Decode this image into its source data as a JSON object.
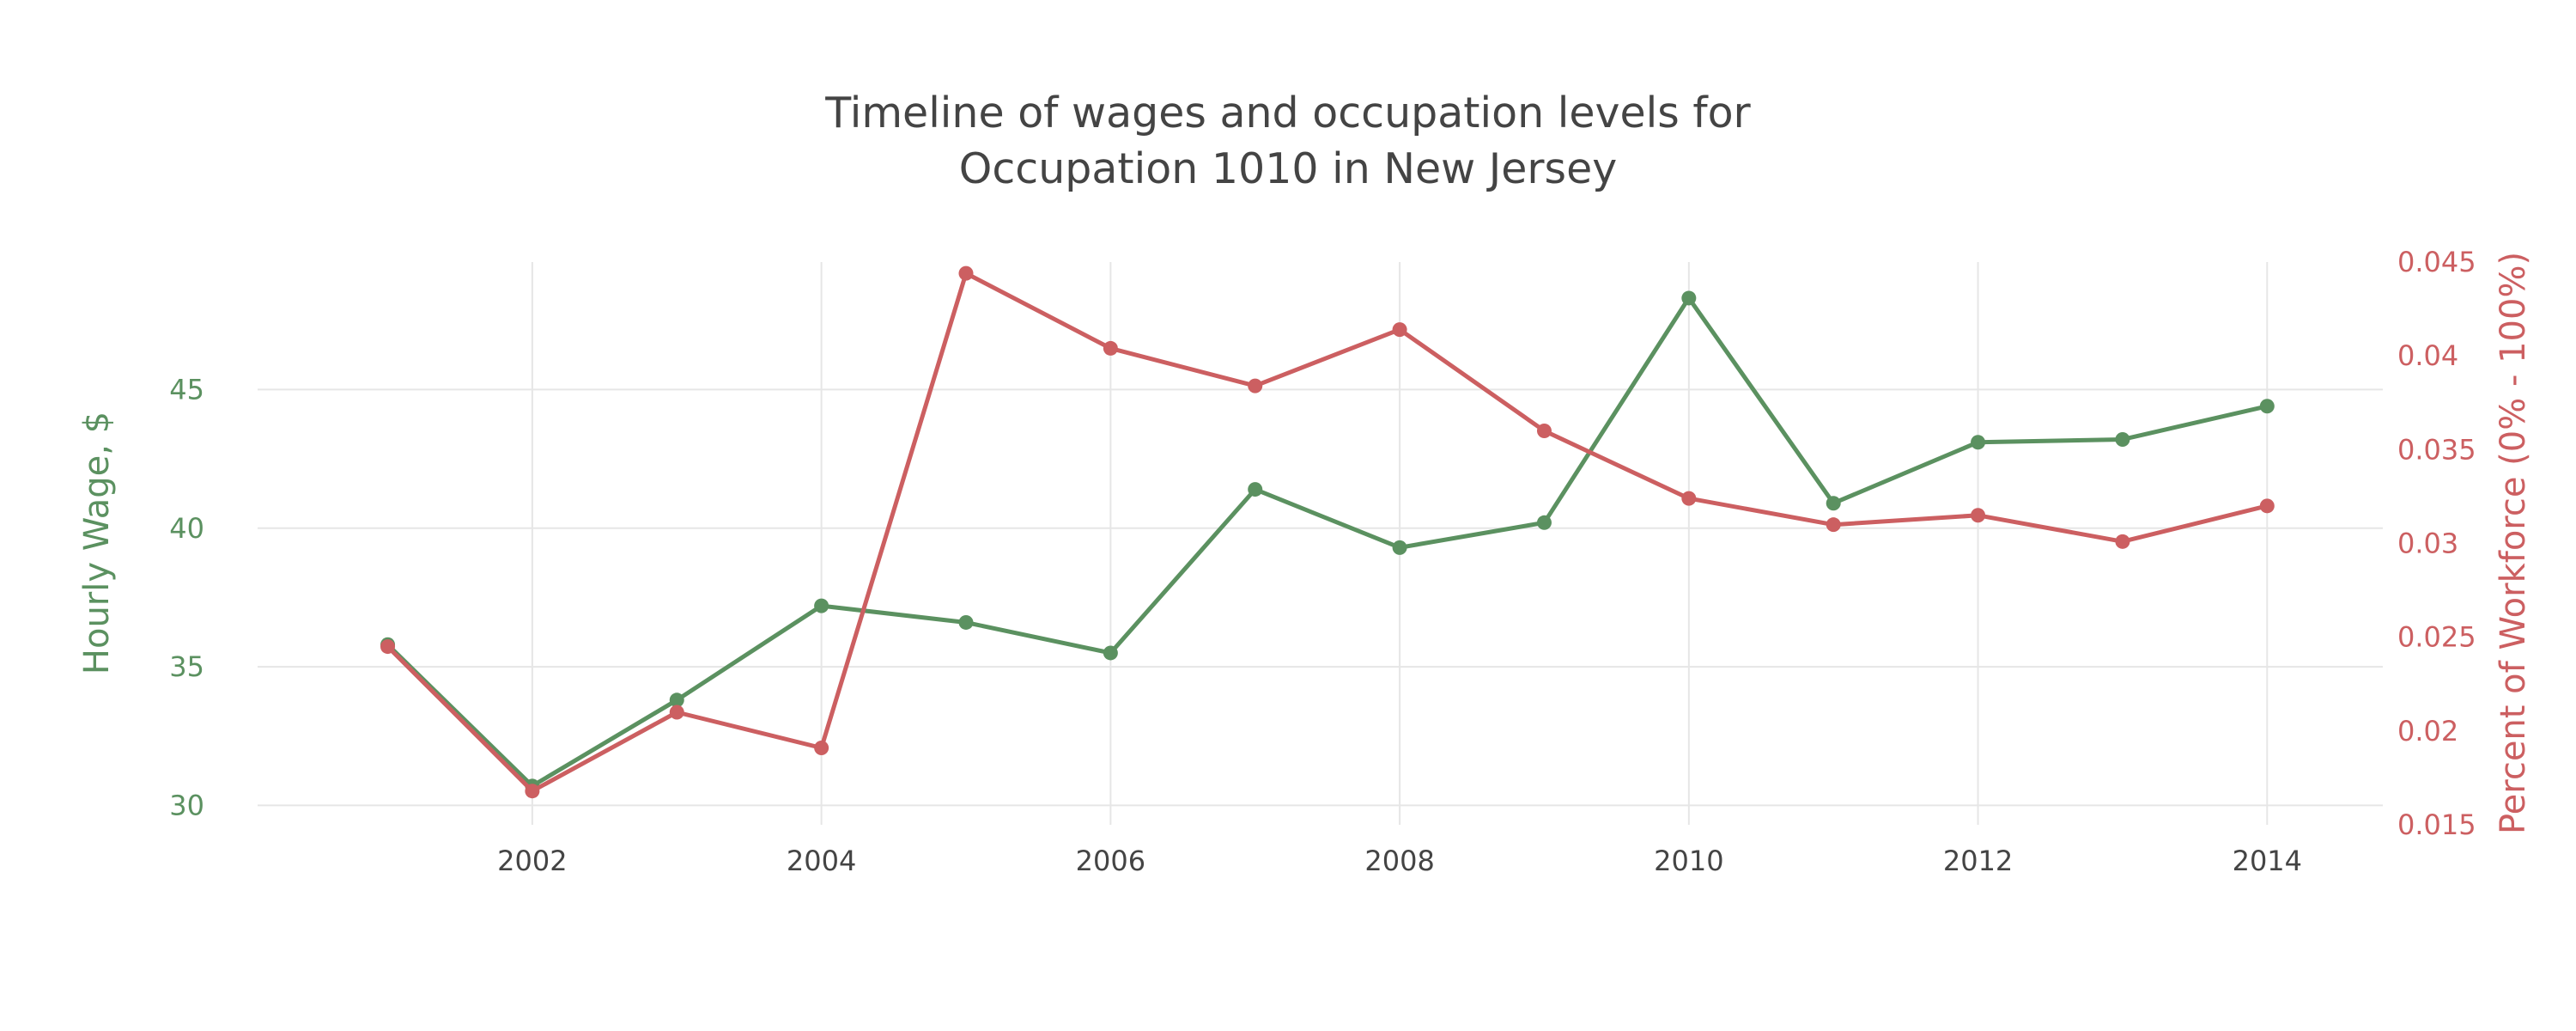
{
  "chart_data": {
    "type": "line",
    "title": "Timeline of wages and occupation levels for Occupation 1010 in New Jersey",
    "title_lines": [
      "Timeline of wages and occupation levels for",
      "Occupation 1010 in New Jersey"
    ],
    "x": [
      2001,
      2002,
      2003,
      2004,
      2005,
      2006,
      2007,
      2008,
      2009,
      2010,
      2011,
      2012,
      2013,
      2014
    ],
    "xlim": [
      2000.1,
      2014.8
    ],
    "x_ticks": [
      2002,
      2004,
      2006,
      2008,
      2010,
      2012,
      2014
    ],
    "x_tick_labels": [
      "2002",
      "2004",
      "2006",
      "2008",
      "2010",
      "2012",
      "2014"
    ],
    "grid": true,
    "series": [
      {
        "axis": "left",
        "color": "#5b9160",
        "values": [
          35.8,
          30.7,
          33.8,
          37.2,
          36.6,
          35.5,
          41.4,
          39.3,
          40.2,
          48.3,
          40.9,
          43.1,
          43.2,
          44.4
        ]
      },
      {
        "axis": "right",
        "color": "#cc5f61",
        "values": [
          0.0245,
          0.0168,
          0.021,
          0.0191,
          0.0444,
          0.0404,
          0.0384,
          0.0414,
          0.036,
          0.0324,
          0.031,
          0.0315,
          0.0301,
          0.032
        ]
      }
    ],
    "y_left": {
      "label": "Hourly Wage, $",
      "color": "#5b9160",
      "lim": [
        29.3,
        49.6
      ],
      "ticks": [
        30,
        35,
        40,
        45
      ],
      "tick_labels": [
        "30",
        "35",
        "40",
        "45"
      ]
    },
    "y_right": {
      "label": "Percent of Workforce (0% - 100%)",
      "color": "#cc5f61",
      "lim": [
        0.015,
        0.045
      ],
      "ticks": [
        0.015,
        0.02,
        0.025,
        0.03,
        0.035,
        0.04,
        0.045
      ],
      "tick_labels": [
        "0.015",
        "0.02",
        "0.025",
        "0.03",
        "0.035",
        "0.04",
        "0.045"
      ]
    }
  }
}
